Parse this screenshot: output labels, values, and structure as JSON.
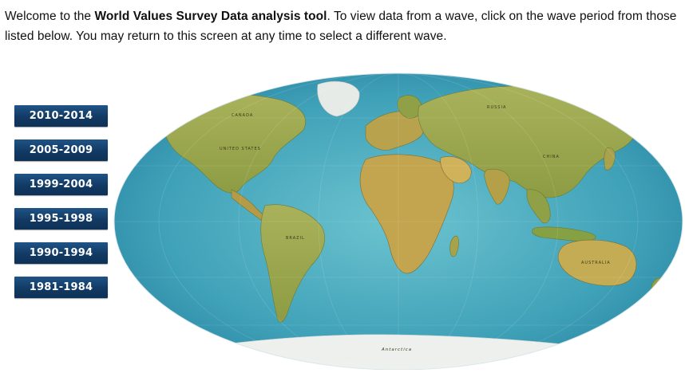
{
  "intro": {
    "part1": "Welcome to the ",
    "bold": "World Values Survey Data analysis tool",
    "part2": ". To view data from a wave, click on the wave period from those listed below. You may return to this screen at any time to select a different wave."
  },
  "waves": [
    {
      "label": "2010-2014"
    },
    {
      "label": "2005-2009"
    },
    {
      "label": "1999-2004"
    },
    {
      "label": "1995-1998"
    },
    {
      "label": "1990-1994"
    },
    {
      "label": "1981-1984"
    }
  ],
  "map": {
    "labels": {
      "canada": "CANADA",
      "united_states": "UNITED STATES",
      "brazil": "BRAZIL",
      "russia": "RUSSIA",
      "china": "CHINA",
      "australia": "AUSTRALIA",
      "antarctica": "Antarctica"
    },
    "colors": {
      "ocean": "#3fa1b8",
      "land": "#9aa84a",
      "ice": "#eef0ee"
    }
  }
}
